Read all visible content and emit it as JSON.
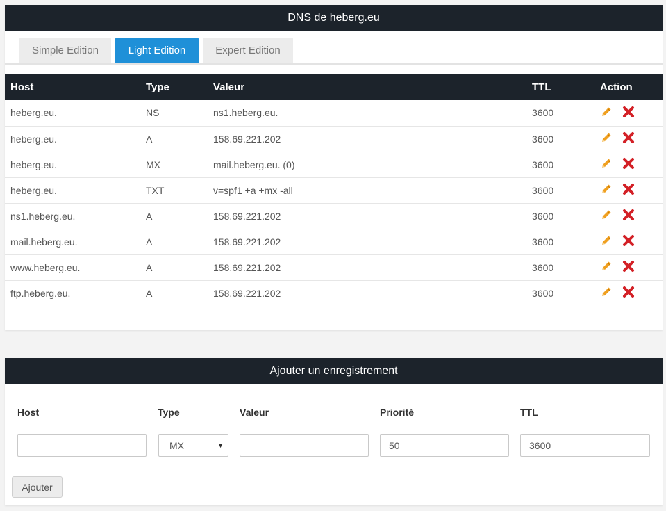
{
  "dns_panel": {
    "title": "DNS de heberg.eu",
    "tabs": [
      {
        "label": "Simple Edition",
        "active": false
      },
      {
        "label": "Light Edition",
        "active": true
      },
      {
        "label": "Expert Edition",
        "active": false
      }
    ],
    "columns": [
      "Host",
      "Type",
      "Valeur",
      "TTL",
      "Action"
    ],
    "records": [
      {
        "host": "heberg.eu.",
        "type": "NS",
        "value": "ns1.heberg.eu.",
        "ttl": "3600"
      },
      {
        "host": "heberg.eu.",
        "type": "A",
        "value": "158.69.221.202",
        "ttl": "3600"
      },
      {
        "host": "heberg.eu.",
        "type": "MX",
        "value": "mail.heberg.eu. (0)",
        "ttl": "3600"
      },
      {
        "host": "heberg.eu.",
        "type": "TXT",
        "value": "v=spf1 +a +mx -all",
        "ttl": "3600"
      },
      {
        "host": "ns1.heberg.eu.",
        "type": "A",
        "value": "158.69.221.202",
        "ttl": "3600"
      },
      {
        "host": "mail.heberg.eu.",
        "type": "A",
        "value": "158.69.221.202",
        "ttl": "3600"
      },
      {
        "host": "www.heberg.eu.",
        "type": "A",
        "value": "158.69.221.202",
        "ttl": "3600"
      },
      {
        "host": "ftp.heberg.eu.",
        "type": "A",
        "value": "158.69.221.202",
        "ttl": "3600"
      }
    ],
    "action_icons": [
      "pencil-icon",
      "delete-icon"
    ]
  },
  "add_panel": {
    "title": "Ajouter un enregistrement",
    "labels": {
      "host": "Host",
      "type": "Type",
      "value": "Valeur",
      "priority": "Priorité",
      "ttl": "TTL"
    },
    "fields": {
      "host": "",
      "type_selected": "MX",
      "value": "",
      "priority": "50",
      "ttl": "3600"
    },
    "submit_label": "Ajouter"
  },
  "colors": {
    "header_bg": "#1c232b",
    "active_tab": "#1f90d8",
    "edit_icon": "#f0a020",
    "delete_icon": "#d32026"
  }
}
